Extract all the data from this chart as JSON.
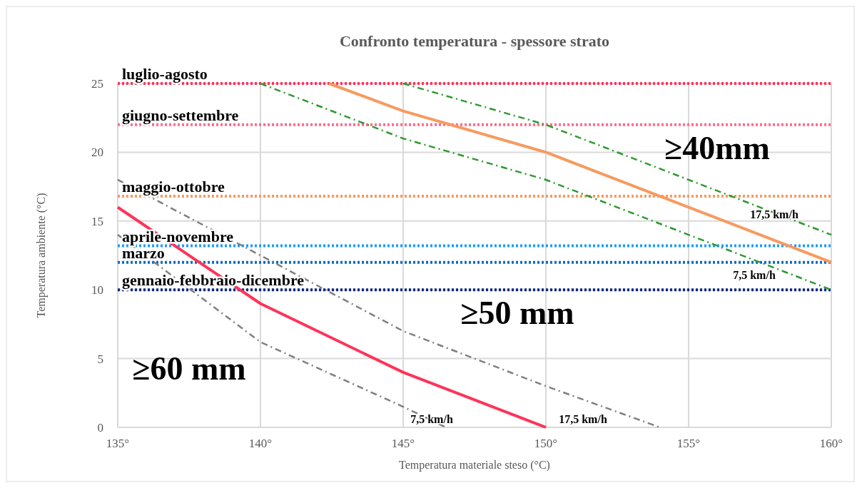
{
  "chart_data": {
    "type": "line",
    "title": "Confronto temperatura - spessore strato",
    "xlabel": "Temperatura materiale steso (°C)",
    "ylabel": "Temperatura ambiente (°C)",
    "xlim": [
      135,
      160
    ],
    "xticks": [
      {
        "value": 135,
        "label": "135°"
      },
      {
        "value": 140,
        "label": "140°"
      },
      {
        "value": 145,
        "label": "145°"
      },
      {
        "value": 150,
        "label": "150°"
      },
      {
        "value": 155,
        "label": "155°"
      },
      {
        "value": 160,
        "label": "160°"
      }
    ],
    "ylim": [
      0,
      25
    ],
    "yticks": [
      0,
      5,
      10,
      15,
      20,
      25
    ],
    "grid": true,
    "series": [
      {
        "color": "#ff3359",
        "line_style": "solid",
        "x": [
          135,
          140,
          145,
          150
        ],
        "values": [
          16,
          9,
          4,
          0
        ]
      },
      {
        "color": "#f79a5e",
        "line_style": "solid",
        "x": [
          142.4,
          145,
          150,
          160
        ],
        "values": [
          25,
          23,
          20,
          12
        ]
      },
      {
        "color": "#2e9a2e",
        "line_style": "dashdot",
        "x": [
          145,
          150,
          160
        ],
        "values": [
          25,
          22,
          14
        ]
      },
      {
        "color": "#2e9a2e",
        "line_style": "dashdot",
        "x": [
          140,
          145,
          150,
          160
        ],
        "values": [
          25,
          21,
          18,
          10
        ]
      },
      {
        "color": "#808080",
        "line_style": "dashdot",
        "x": [
          135,
          140,
          145,
          146.5
        ],
        "values": [
          14,
          6.2,
          1.5,
          0
        ]
      },
      {
        "color": "#808080",
        "line_style": "dashdot",
        "x": [
          135,
          140,
          145,
          150,
          154
        ],
        "values": [
          18,
          12.5,
          7,
          3,
          0
        ]
      }
    ],
    "ref_lines": [
      {
        "axis": "y",
        "value": 25,
        "label": "luglio-agosto",
        "color": "#ff3359",
        "line_style": "dotted"
      },
      {
        "axis": "y",
        "value": 22,
        "label": "giugno-settembre",
        "color": "#ff6b8a",
        "line_style": "dotted"
      },
      {
        "axis": "y",
        "value": 16.8,
        "label": "maggio-ottobre",
        "color": "#f79a5e",
        "line_style": "dotted"
      },
      {
        "axis": "y",
        "value": 13.2,
        "label": "aprile-novembre",
        "color": "#1e9bff",
        "line_style": "dotted"
      },
      {
        "axis": "y",
        "value": 12,
        "label": "marzo",
        "color": "#0a6ebd",
        "line_style": "dotted"
      },
      {
        "axis": "y",
        "value": 10,
        "label": "gennaio-febbraio-dicembre",
        "color": "#0a2a80",
        "line_style": "dotted"
      }
    ],
    "annotations": [
      "≥40mm",
      "≥50 mm",
      "≥60 mm",
      "17,5 km/h",
      "7,5 km/h",
      "7,5 km/h",
      "17,5 km/h"
    ]
  }
}
